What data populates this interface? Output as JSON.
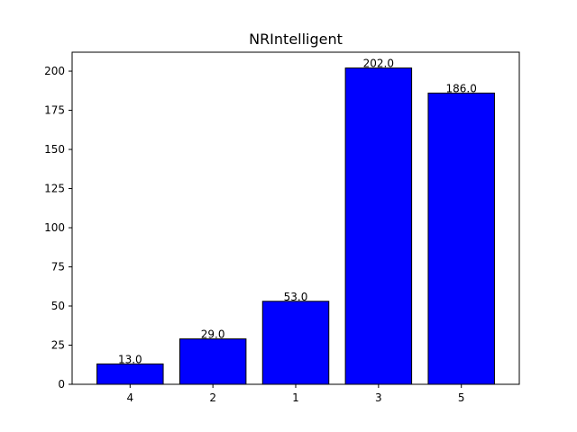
{
  "chart_data": {
    "type": "bar",
    "title": "NRIntelligent",
    "xlabel": "",
    "ylabel": "",
    "categories": [
      "4",
      "2",
      "1",
      "3",
      "5"
    ],
    "values": [
      13.0,
      29.0,
      53.0,
      202.0,
      186.0
    ],
    "value_labels": [
      "13.0",
      "29.0",
      "53.0",
      "202.0",
      "186.0"
    ],
    "ylim": [
      0,
      212.1
    ],
    "yticks": [
      0,
      25,
      50,
      75,
      100,
      125,
      150,
      175,
      200
    ],
    "grid": false,
    "bar_color": "#0000ff",
    "edge_color": "#000000"
  }
}
